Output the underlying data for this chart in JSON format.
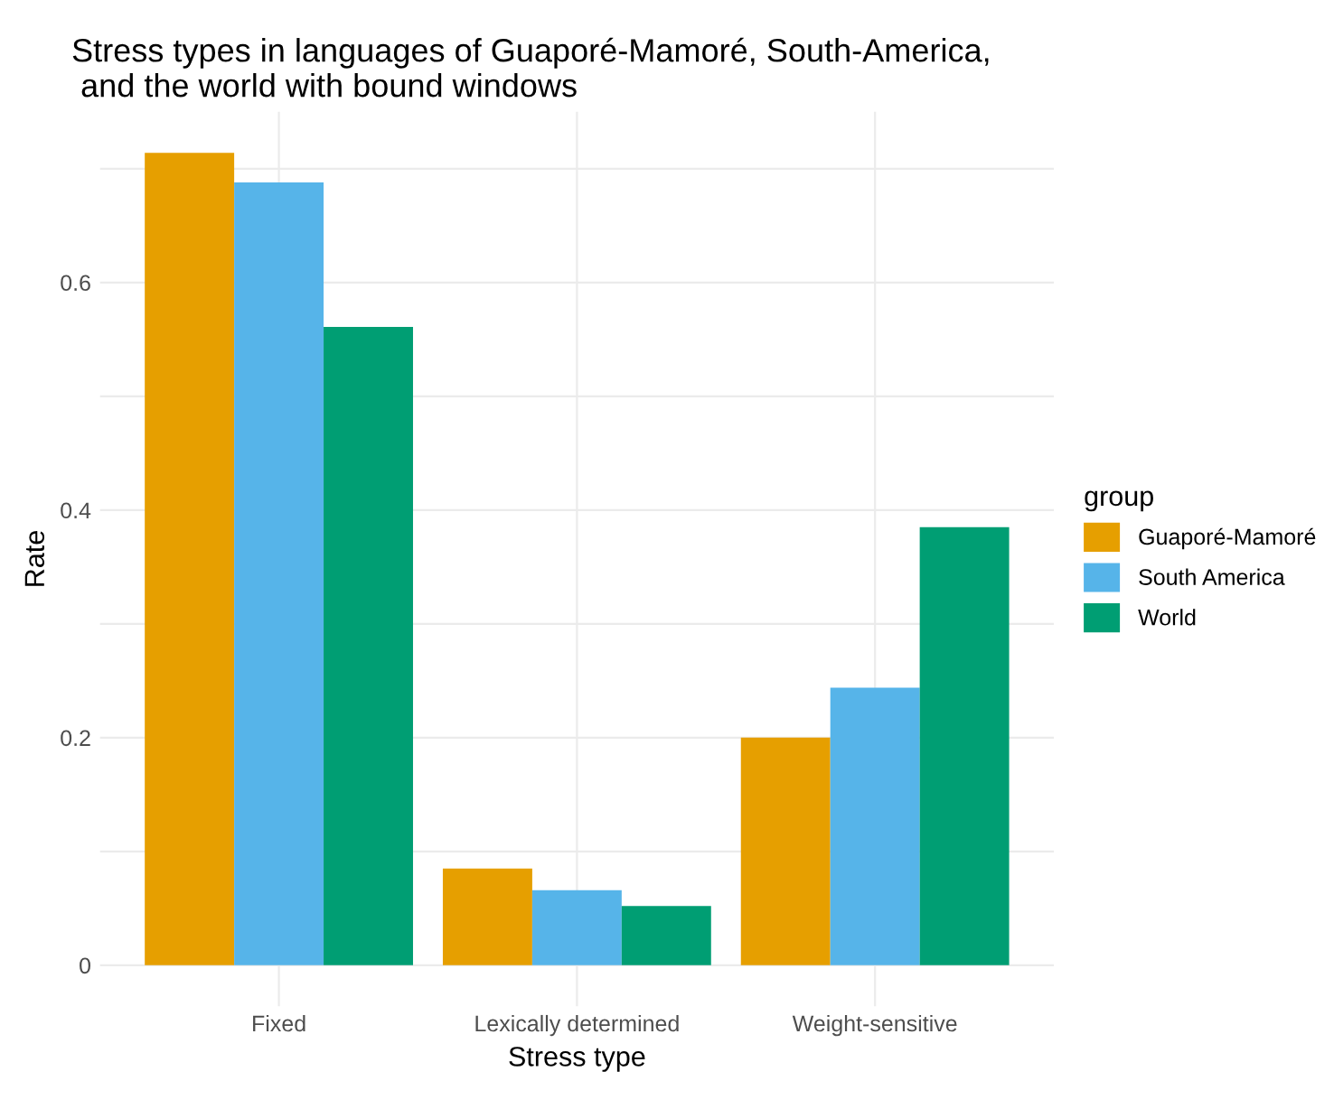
{
  "chart_data": {
    "type": "bar",
    "title": "Stress types in languages of Guaporé-Mamoré, South-America,\n and the world with bound windows",
    "xlabel": "Stress type",
    "ylabel": "Rate",
    "legend_title": "group",
    "categories": [
      "Fixed",
      "Lexically determined",
      "Weight-sensitive"
    ],
    "series": [
      {
        "name": "Guaporé-Mamoré",
        "color": "#e69f00",
        "values": [
          0.714,
          0.085,
          0.2
        ]
      },
      {
        "name": "South America",
        "color": "#56b4e9",
        "values": [
          0.688,
          0.066,
          0.244
        ]
      },
      {
        "name": "World",
        "color": "#009e73",
        "values": [
          0.561,
          0.052,
          0.385
        ]
      }
    ],
    "ylim": [
      -0.036,
      0.75
    ],
    "yticks": [
      0,
      {
        "value": 0.1,
        "label": null
      },
      0.2,
      {
        "value": 0.3,
        "label": null
      },
      0.4,
      {
        "value": 0.5,
        "label": null
      },
      0.6,
      {
        "value": 0.7,
        "label": null
      }
    ],
    "grid": true,
    "legend": "right"
  }
}
